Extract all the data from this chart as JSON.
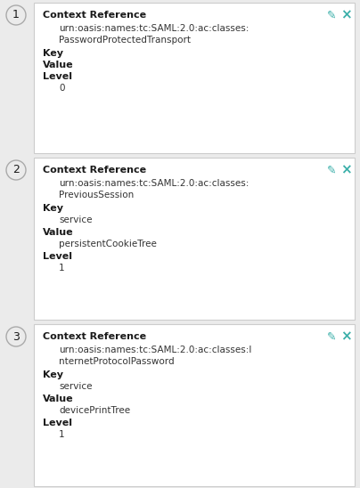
{
  "bg_color": "#ebebeb",
  "panel_color": "#ffffff",
  "border_color": "#cccccc",
  "number_circle_border": "#aaaaaa",
  "teal_color": "#3aafa9",
  "text_color": "#1a1a1a",
  "value_color": "#333333",
  "figw": 4.04,
  "figh": 5.48,
  "dpi": 100,
  "rows": [
    {
      "number": "1",
      "context_ref_line1": "urn:oasis:names:tc:SAML:2.0:ac:classes:",
      "context_ref_line2": "PasswordProtectedTransport",
      "key": "",
      "value": "",
      "level": "0"
    },
    {
      "number": "2",
      "context_ref_line1": "urn:oasis:names:tc:SAML:2.0:ac:classes:",
      "context_ref_line2": "PreviousSession",
      "key": "service",
      "value": "persistentCookieTree",
      "level": "1"
    },
    {
      "number": "3",
      "context_ref_line1": "urn:oasis:names:tc:SAML:2.0:ac:classes:I",
      "context_ref_line2": "nternetProtocolPassword",
      "key": "service",
      "value": "devicePrintTree",
      "level": "1"
    }
  ]
}
